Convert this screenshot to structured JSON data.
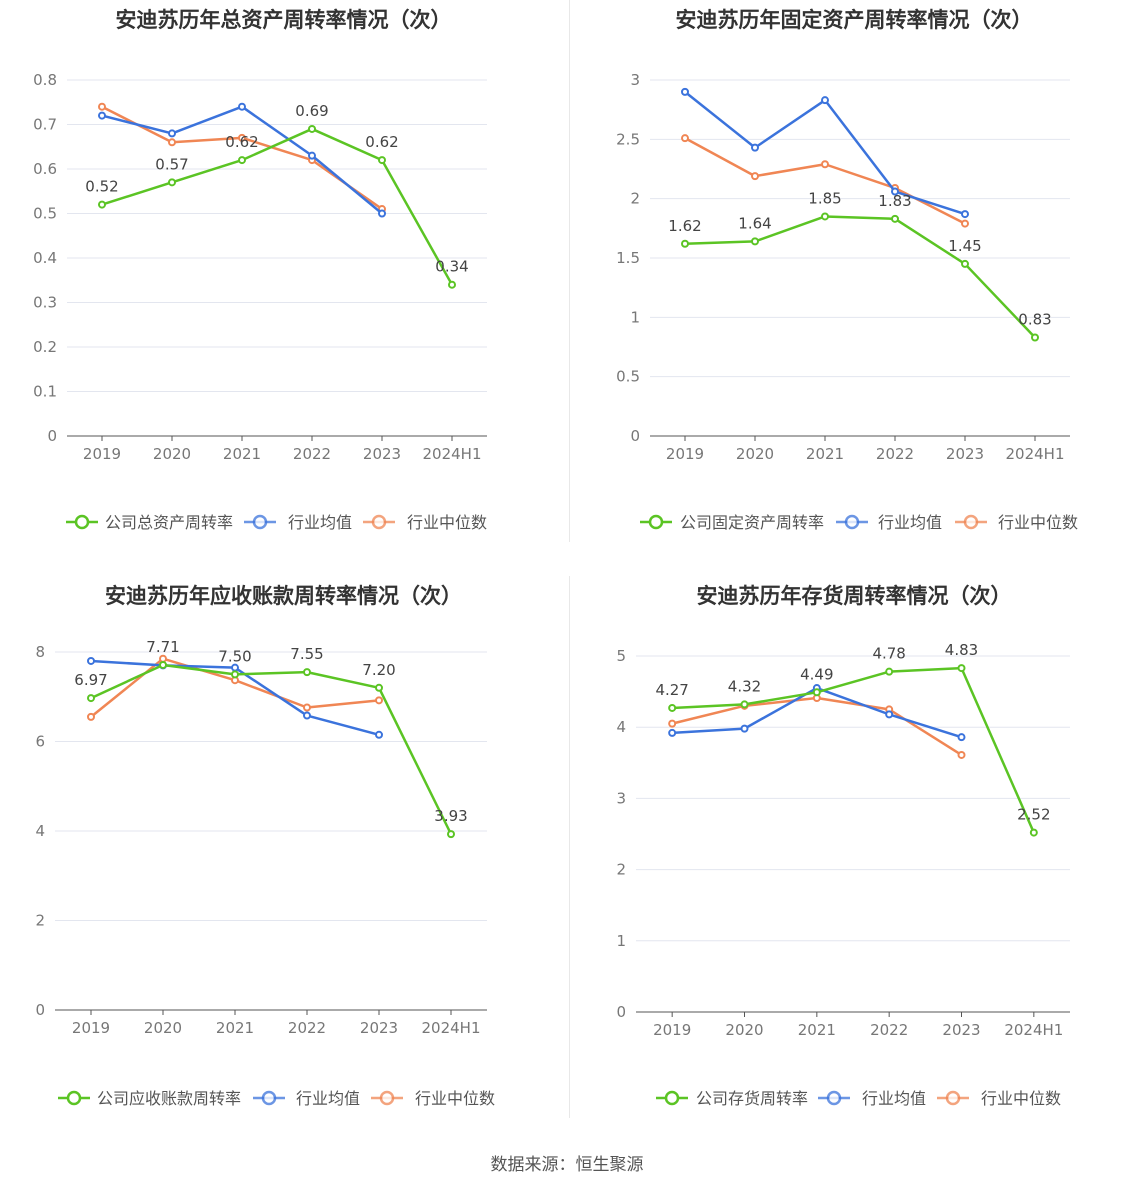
{
  "source": "数据来源：恒生聚源",
  "colors": {
    "company": "#5bc424",
    "avg": "#3b73dc",
    "median": "#f08654"
  },
  "chart_data": [
    {
      "type": "line",
      "title": "安迪苏历年总资产周转率情况（次）",
      "categories": [
        "2019",
        "2020",
        "2021",
        "2022",
        "2023",
        "2024H1"
      ],
      "ylim": [
        0,
        0.8
      ],
      "yticks": [
        "0",
        "0.1",
        "0.2",
        "0.3",
        "0.4",
        "0.5",
        "0.6",
        "0.7",
        "0.8"
      ],
      "series": [
        {
          "name": "公司总资产周转率",
          "values": [
            0.52,
            0.57,
            0.62,
            0.69,
            0.62,
            0.34
          ],
          "labels": [
            "0.52",
            "0.57",
            "0.62",
            "0.69",
            "0.62",
            "0.34"
          ]
        },
        {
          "name": "行业均值",
          "values": [
            0.72,
            0.68,
            0.74,
            0.63,
            0.5,
            null
          ]
        },
        {
          "name": "行业中位数",
          "values": [
            0.74,
            0.66,
            0.67,
            0.62,
            0.51,
            null
          ]
        }
      ]
    },
    {
      "type": "line",
      "title": "安迪苏历年固定资产周转率情况（次）",
      "categories": [
        "2019",
        "2020",
        "2021",
        "2022",
        "2023",
        "2024H1"
      ],
      "ylim": [
        0,
        3
      ],
      "yticks": [
        "0",
        "0.5",
        "1",
        "1.5",
        "2",
        "2.5",
        "3"
      ],
      "series": [
        {
          "name": "公司固定资产周转率",
          "values": [
            1.62,
            1.64,
            1.85,
            1.83,
            1.45,
            0.83
          ],
          "labels": [
            "1.62",
            "1.64",
            "1.85",
            "1.83",
            "1.45",
            "0.83"
          ]
        },
        {
          "name": "行业均值",
          "values": [
            2.9,
            2.43,
            2.83,
            2.06,
            1.87,
            null
          ]
        },
        {
          "name": "行业中位数",
          "values": [
            2.51,
            2.19,
            2.29,
            2.09,
            1.79,
            null
          ]
        }
      ]
    },
    {
      "type": "line",
      "title": "安迪苏历年应收账款周转率情况（次）",
      "categories": [
        "2019",
        "2020",
        "2021",
        "2022",
        "2023",
        "2024H1"
      ],
      "ylim": [
        0,
        8
      ],
      "yticks": [
        "0",
        "2",
        "4",
        "6",
        "8"
      ],
      "series": [
        {
          "name": "公司应收账款周转率",
          "values": [
            6.97,
            7.71,
            7.5,
            7.55,
            7.2,
            3.93
          ],
          "labels": [
            "6.97",
            "7.71",
            "7.50",
            "7.55",
            "7.20",
            "3.93"
          ]
        },
        {
          "name": "行业均值",
          "values": [
            7.8,
            7.7,
            7.65,
            6.58,
            6.15,
            null
          ]
        },
        {
          "name": "行业中位数",
          "values": [
            6.55,
            7.85,
            7.37,
            6.76,
            6.92,
            null
          ]
        }
      ]
    },
    {
      "type": "line",
      "title": "安迪苏历年存货周转率情况（次）",
      "categories": [
        "2019",
        "2020",
        "2021",
        "2022",
        "2023",
        "2024H1"
      ],
      "ylim": [
        0,
        5
      ],
      "yticks": [
        "0",
        "1",
        "2",
        "3",
        "4",
        "5"
      ],
      "series": [
        {
          "name": "公司存货周转率",
          "values": [
            4.27,
            4.32,
            4.49,
            4.78,
            4.83,
            2.52
          ],
          "labels": [
            "4.27",
            "4.32",
            "4.49",
            "4.78",
            "4.83",
            "2.52"
          ]
        },
        {
          "name": "行业均值",
          "values": [
            3.92,
            3.98,
            4.55,
            4.18,
            3.86,
            null
          ]
        },
        {
          "name": "行业中位数",
          "values": [
            4.05,
            4.3,
            4.41,
            4.25,
            3.61,
            null
          ]
        }
      ]
    }
  ]
}
